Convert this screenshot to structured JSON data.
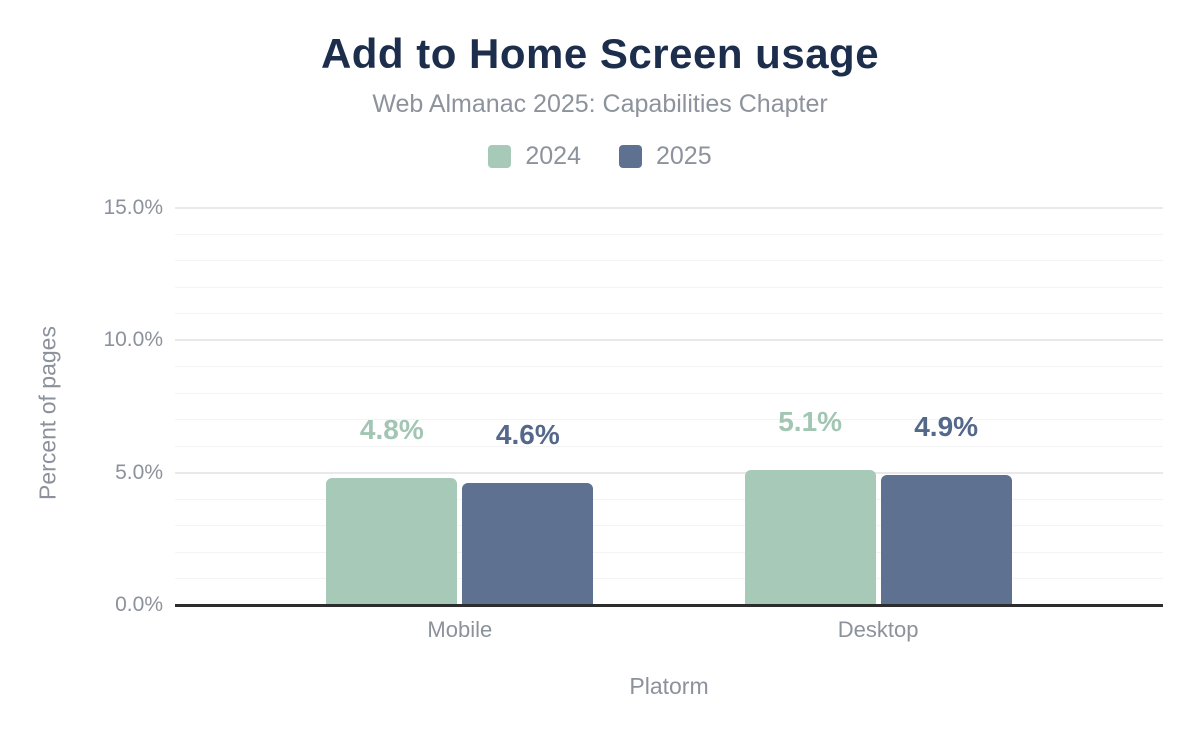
{
  "header": {
    "title": "Add to Home Screen usage",
    "subtitle": "Web Almanac 2025: Capabilities Chapter"
  },
  "colors": {
    "title": "#1d2e4d",
    "muted_text": "#8c929b",
    "axis_line": "#2d2d2d",
    "grid_minor": "#f4f4f5",
    "grid_major": "#e9e9ec",
    "series_2024": "#a7c9b8",
    "series_2025": "#5e7190",
    "label_2024": "#a2c6b3",
    "label_2025": "#54688c"
  },
  "chart_data": {
    "type": "bar",
    "title": "Add to Home Screen usage",
    "subtitle": "Web Almanac 2025: Capabilities Chapter",
    "categories": [
      "Mobile",
      "Desktop"
    ],
    "series": [
      {
        "name": "2024",
        "color": "#a7c9b8",
        "label_color": "#a2c6b3",
        "values": [
          4.8,
          5.1
        ],
        "data_labels": [
          "4.8%",
          "5.1%"
        ]
      },
      {
        "name": "2025",
        "color": "#5e7190",
        "label_color": "#54688c",
        "values": [
          4.6,
          4.9
        ],
        "data_labels": [
          "4.6%",
          "4.9%"
        ]
      }
    ],
    "xlabel": "Platorm",
    "ylabel": "Percent of pages",
    "ylim": [
      0,
      15
    ],
    "ytick_major_step": 5,
    "ytick_minor_step": 1,
    "ytick_labels": [
      "0.0%",
      "5.0%",
      "10.0%",
      "15.0%"
    ],
    "grid": true,
    "legend_position": "top"
  }
}
